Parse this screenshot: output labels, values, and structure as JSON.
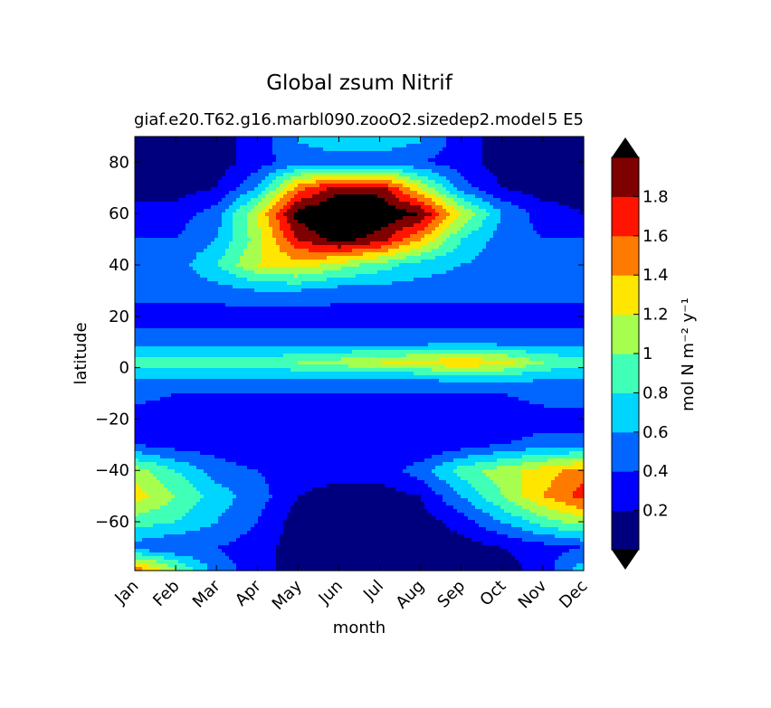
{
  "chart_data": {
    "type": "heatmap",
    "title": "Global zsum Nitrif",
    "subtitle_left": "giaf.e20.T62.g16.marbl090.zooO2.sizedep2.model",
    "subtitle_right": "5 E5",
    "xlabel": "month",
    "ylabel": "latitude",
    "x_ticks": [
      "Jan",
      "Feb",
      "Mar",
      "Apr",
      "May",
      "Jun",
      "Jul",
      "Aug",
      "Sep",
      "Oct",
      "Nov",
      "Dec"
    ],
    "y_ticks": [
      80,
      60,
      40,
      20,
      0,
      -20,
      -40,
      -60
    ],
    "ylim": [
      -79,
      90
    ],
    "colorbar": {
      "label": "mol N m⁻² y⁻¹",
      "tick_labels": [
        "0.2",
        "0.4",
        "0.6",
        "0.8",
        "1",
        "1.2",
        "1.4",
        "1.6",
        "1.8"
      ],
      "levels": [
        0,
        0.2,
        0.4,
        0.6,
        0.8,
        1.0,
        1.2,
        1.4,
        1.6,
        1.8,
        2.0
      ],
      "colors": [
        "#00007f",
        "#0000ff",
        "#0066ff",
        "#00d5ff",
        "#40ffb7",
        "#a6ff4f",
        "#ffe600",
        "#ff7b00",
        "#ff1400",
        "#7f0000"
      ],
      "over_color": "#000000",
      "under_color": "#000000",
      "extend": "both"
    },
    "months": [
      "Jan",
      "Feb",
      "Mar",
      "Apr",
      "May",
      "Jun",
      "Jul",
      "Aug",
      "Sep",
      "Oct",
      "Nov",
      "Dec"
    ],
    "latitudes": [
      88,
      80,
      70,
      60,
      50,
      40,
      30,
      20,
      10,
      2,
      -4,
      -10,
      -20,
      -30,
      -40,
      -50,
      -60,
      -70,
      -78
    ],
    "values": [
      [
        0.1,
        0.1,
        0.1,
        0.3,
        0.6,
        0.7,
        0.7,
        0.6,
        0.3,
        0.1,
        0.1,
        0.1
      ],
      [
        0.1,
        0.1,
        0.1,
        0.3,
        0.5,
        0.5,
        0.5,
        0.4,
        0.3,
        0.1,
        0.1,
        0.1
      ],
      [
        0.1,
        0.1,
        0.2,
        0.6,
        1.5,
        1.9,
        1.9,
        1.2,
        0.5,
        0.2,
        0.1,
        0.1
      ],
      [
        0.3,
        0.3,
        0.5,
        1.2,
        2.1,
        2.3,
        2.2,
        2.0,
        1.2,
        0.6,
        0.3,
        0.2
      ],
      [
        0.4,
        0.4,
        0.6,
        1.1,
        1.8,
        2.1,
        1.9,
        1.4,
        0.8,
        0.5,
        0.4,
        0.4
      ],
      [
        0.5,
        0.5,
        0.8,
        1.2,
        1.3,
        1.1,
        0.9,
        0.7,
        0.6,
        0.5,
        0.5,
        0.5
      ],
      [
        0.5,
        0.5,
        0.5,
        0.6,
        0.6,
        0.5,
        0.5,
        0.5,
        0.5,
        0.5,
        0.5,
        0.5
      ],
      [
        0.3,
        0.3,
        0.3,
        0.3,
        0.3,
        0.3,
        0.3,
        0.3,
        0.3,
        0.3,
        0.3,
        0.3
      ],
      [
        0.5,
        0.5,
        0.5,
        0.5,
        0.5,
        0.5,
        0.5,
        0.5,
        0.5,
        0.5,
        0.5,
        0.5
      ],
      [
        0.9,
        0.9,
        0.9,
        0.9,
        1.0,
        1.1,
        1.2,
        1.3,
        1.4,
        1.3,
        1.0,
        0.9
      ],
      [
        0.6,
        0.6,
        0.6,
        0.6,
        0.6,
        0.6,
        0.6,
        0.6,
        0.7,
        0.7,
        0.6,
        0.6
      ],
      [
        0.5,
        0.4,
        0.4,
        0.4,
        0.4,
        0.4,
        0.4,
        0.4,
        0.4,
        0.4,
        0.5,
        0.5
      ],
      [
        0.3,
        0.2,
        0.2,
        0.2,
        0.2,
        0.2,
        0.2,
        0.2,
        0.2,
        0.2,
        0.3,
        0.3
      ],
      [
        0.4,
        0.3,
        0.3,
        0.2,
        0.2,
        0.2,
        0.2,
        0.2,
        0.3,
        0.4,
        0.5,
        0.5
      ],
      [
        1.1,
        0.8,
        0.5,
        0.4,
        0.3,
        0.3,
        0.3,
        0.5,
        0.9,
        1.1,
        1.3,
        1.5
      ],
      [
        1.3,
        1.0,
        0.7,
        0.5,
        0.2,
        0.1,
        0.1,
        0.2,
        0.6,
        1.0,
        1.4,
        1.7
      ],
      [
        0.9,
        0.8,
        0.6,
        0.4,
        0.1,
        0.05,
        0.05,
        0.1,
        0.3,
        0.6,
        0.9,
        1.1
      ],
      [
        0.5,
        0.4,
        0.4,
        0.3,
        0.1,
        0.05,
        0.05,
        0.05,
        0.1,
        0.2,
        0.3,
        0.4
      ],
      [
        1.5,
        1.0,
        0.5,
        0.3,
        0.1,
        0.05,
        0.05,
        0.05,
        0.05,
        0.1,
        0.3,
        0.7
      ]
    ]
  }
}
